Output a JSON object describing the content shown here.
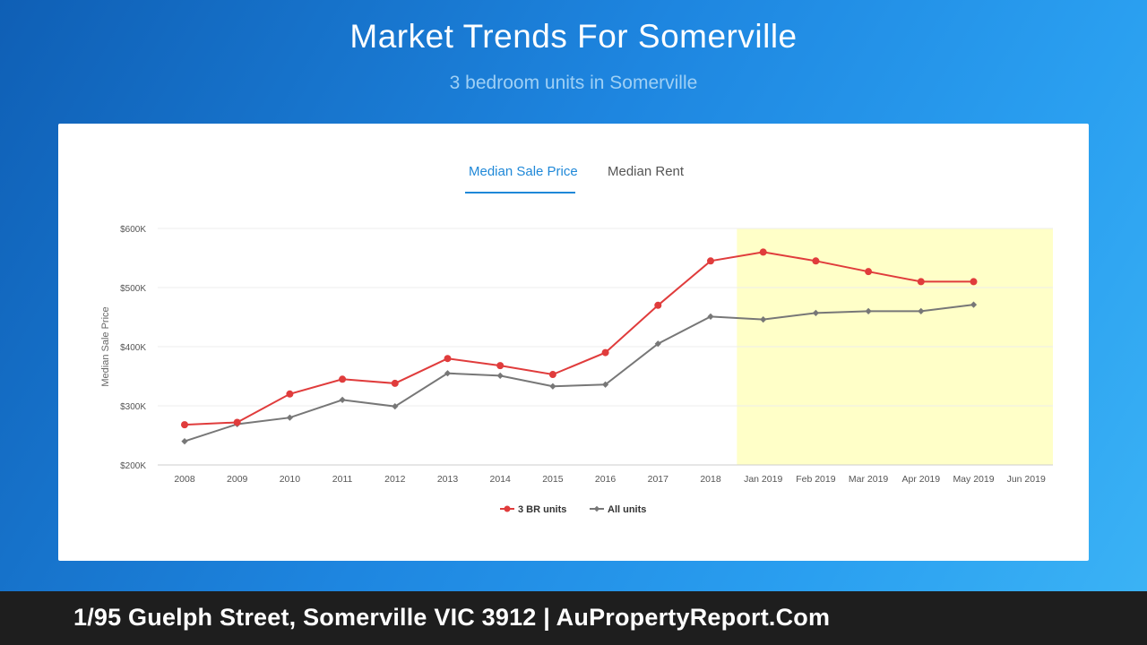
{
  "header": {
    "title": "Market Trends For Somerville",
    "subtitle": "3 bedroom units in Somerville"
  },
  "tabs": [
    {
      "label": "Median Sale Price",
      "active": true
    },
    {
      "label": "Median Rent",
      "active": false
    }
  ],
  "footer": {
    "text": "1/95 Guelph Street, Somerville VIC 3912 | AuPropertyReport.Com"
  },
  "colors": {
    "accent": "#1f88d8",
    "series_3br": "#e03c3c",
    "series_all": "#777777",
    "forecast_band": "#ffffc8"
  },
  "chart_data": {
    "type": "line",
    "ylabel": "Median Sale Price",
    "ylim": [
      200000,
      600000
    ],
    "yticks": [
      200000,
      300000,
      400000,
      500000,
      600000
    ],
    "ytick_labels": [
      "$200K",
      "$300K",
      "$400K",
      "$500K",
      "$600K"
    ],
    "categories": [
      "2008",
      "2009",
      "2010",
      "2011",
      "2012",
      "2013",
      "2014",
      "2015",
      "2016",
      "2017",
      "2018",
      "Jan 2019",
      "Feb 2019",
      "Mar 2019",
      "Apr 2019",
      "May 2019",
      "Jun 2019"
    ],
    "highlight_range": [
      "Jan 2019",
      "Jun 2019"
    ],
    "legend_position": "bottom-center",
    "series": [
      {
        "name": "3 BR units",
        "marker": "circle",
        "values": [
          268000,
          272000,
          320000,
          345000,
          338000,
          380000,
          368000,
          353000,
          390000,
          470000,
          545000,
          560000,
          545000,
          527000,
          510000,
          510000,
          null
        ]
      },
      {
        "name": "All units",
        "marker": "diamond",
        "values": [
          240000,
          269000,
          280000,
          310000,
          299000,
          355000,
          351000,
          333000,
          336000,
          405000,
          451000,
          446000,
          457000,
          460000,
          460000,
          471000,
          null
        ]
      }
    ]
  }
}
